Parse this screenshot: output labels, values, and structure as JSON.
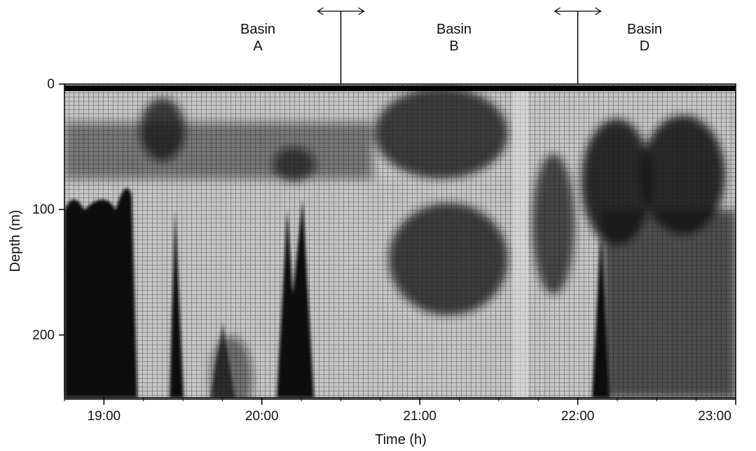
{
  "chart_data": {
    "type": "echogram",
    "x_label": "Time (h)",
    "y_label": "Depth (m)",
    "xlim": [
      18.75,
      23
    ],
    "xticks": [
      {
        "value": 19,
        "label": "19:00"
      },
      {
        "value": 20,
        "label": "20:00"
      },
      {
        "value": 21,
        "label": "21:00"
      },
      {
        "value": 22,
        "label": "22:00"
      },
      {
        "value": 23,
        "label": "23:00"
      }
    ],
    "ylim": [
      0,
      250
    ],
    "yticks": [
      0,
      100,
      200
    ],
    "y_inverted": true,
    "annotations": [
      [
        "Basin",
        "A"
      ],
      [
        "Basin",
        "B"
      ],
      [
        "Basin",
        "D"
      ]
    ],
    "boundaries": [
      20.5,
      22.0
    ]
  }
}
